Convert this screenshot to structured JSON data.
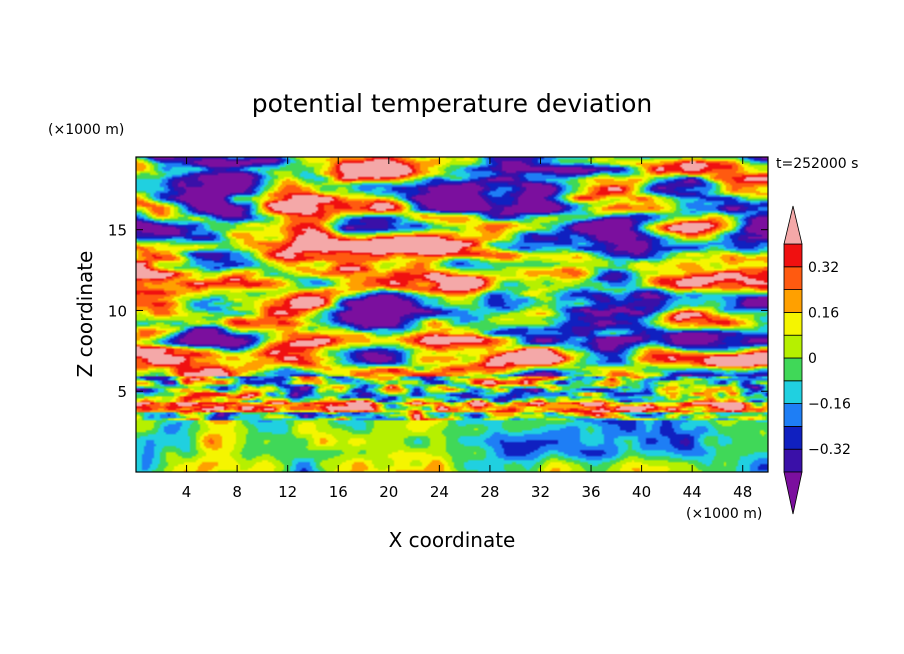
{
  "chart_data": {
    "type": "heatmap",
    "title": "potential temperature deviation",
    "xlabel": "X coordinate",
    "ylabel": "Z coordinate",
    "x_unit": "(×1000 m)",
    "y_unit": "(×1000 m)",
    "time_label": "t=252000 s",
    "xlim": [
      0,
      50
    ],
    "ylim": [
      0,
      19.5
    ],
    "x_ticks": [
      4,
      8,
      12,
      16,
      20,
      24,
      28,
      32,
      36,
      40,
      44,
      48
    ],
    "y_ticks": [
      5,
      10,
      15
    ],
    "colorbar": {
      "levels": [
        -0.4,
        -0.32,
        -0.24,
        -0.16,
        -0.08,
        0,
        0.08,
        0.16,
        0.24,
        0.32,
        0.4
      ],
      "tick_labels": [
        "0.32",
        "0.16",
        "0",
        "−0.16",
        "−0.32"
      ],
      "tick_values": [
        0.32,
        0.16,
        0,
        -0.16,
        -0.32
      ],
      "extend": "both",
      "colors": [
        "#7b0f9e",
        "#3a10a8",
        "#1020c0",
        "#1e7ef5",
        "#20d0e0",
        "#40d858",
        "#b6f000",
        "#f5f500",
        "#ffa000",
        "#ff5a10",
        "#f01010",
        "#f4a8a8"
      ]
    }
  }
}
